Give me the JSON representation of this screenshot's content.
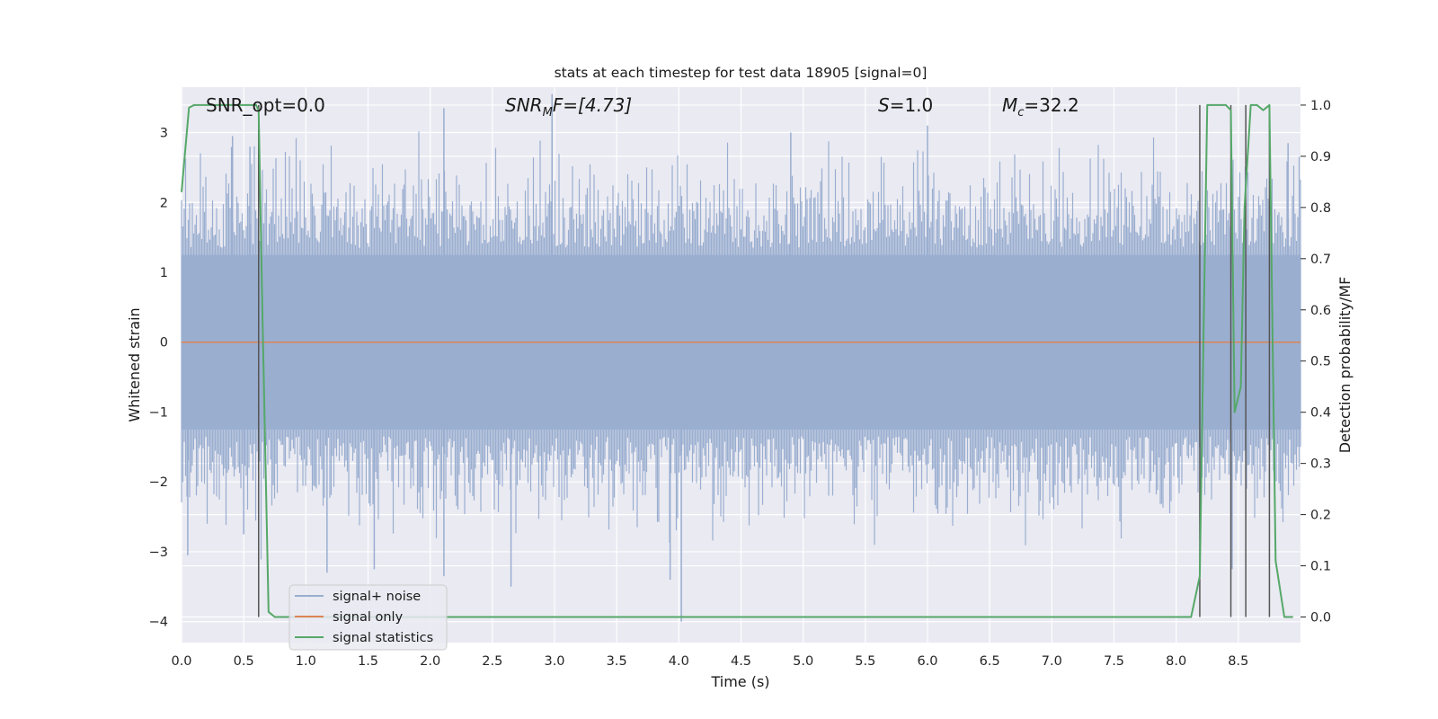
{
  "chart_data": {
    "type": "line",
    "title": "stats at each timestep for test data 18905 [signal=0]",
    "xlabel": "Time (s)",
    "ylabel": "Whitened strain",
    "ylabel_right": "Detection probability/MF",
    "xlim": [
      0.0,
      9.0
    ],
    "ylim": [
      -4.3,
      3.65
    ],
    "ylim_right": [
      -0.05,
      1.035
    ],
    "x_ticks": [
      "0.0",
      "0.5",
      "1.0",
      "1.5",
      "2.0",
      "2.5",
      "3.0",
      "3.5",
      "4.0",
      "4.5",
      "5.0",
      "5.5",
      "6.0",
      "6.5",
      "7.0",
      "7.5",
      "8.0",
      "8.5"
    ],
    "y_ticks": [
      "3",
      "2",
      "1",
      "0",
      "−1",
      "−2",
      "−3",
      "−4"
    ],
    "y_ticks_right": [
      "1.0",
      "0.9",
      "0.8",
      "0.7",
      "0.6",
      "0.5",
      "0.4",
      "0.3",
      "0.2",
      "0.1",
      "0.0"
    ],
    "grid": true,
    "legend_position": "lower-left",
    "annotations": {
      "snr_opt": "SNR_opt=0.0",
      "snr_mf_label": "SNR",
      "snr_mf_sub": "M",
      "snr_mf_rest": "F=[4.73]",
      "s_label": "S",
      "s_value": "=1.0",
      "mc_label": "M",
      "mc_sub": "c",
      "mc_value": "=32.2"
    },
    "series": [
      {
        "name": "signal+ noise",
        "color": "#9aaed0",
        "description_values": "dense whitened noise, mostly within [-1.7, 1.4], peaks to about 3.5 and -3.6",
        "envelope_upper_typical": 1.8,
        "envelope_lower_typical": -1.8,
        "spikes": [
          {
            "x": 0.05,
            "y": -3.05
          },
          {
            "x": 0.41,
            "y": 2.95
          },
          {
            "x": 0.55,
            "y": 2.8
          },
          {
            "x": 0.5,
            "y": -2.75
          },
          {
            "x": 1.17,
            "y": -3.3
          },
          {
            "x": 1.55,
            "y": -3.25
          },
          {
            "x": 2.11,
            "y": 3.35
          },
          {
            "x": 2.11,
            "y": -3.35
          },
          {
            "x": 2.65,
            "y": -3.5
          },
          {
            "x": 2.98,
            "y": 3.55
          },
          {
            "x": 3.93,
            "y": -3.4
          },
          {
            "x": 4.02,
            "y": -4.0
          },
          {
            "x": 4.9,
            "y": 3.0
          },
          {
            "x": 6.0,
            "y": 3.1
          },
          {
            "x": 8.45,
            "y": -3.25
          },
          {
            "x": 8.9,
            "y": 2.85
          }
        ]
      },
      {
        "name": "signal only",
        "color": "#dd8452",
        "x": [
          0.0,
          9.0
        ],
        "y": [
          0.0,
          0.0
        ]
      },
      {
        "name": "signal statistics",
        "color": "#55a868",
        "axis": "right",
        "x": [
          0.0,
          0.06,
          0.1,
          0.2,
          0.3,
          0.4,
          0.5,
          0.55,
          0.6,
          0.62,
          0.65,
          0.7,
          0.75,
          0.8,
          1.0,
          2.0,
          3.0,
          4.0,
          5.0,
          6.0,
          7.0,
          8.0,
          8.12,
          8.19,
          8.22,
          8.25,
          8.35,
          8.4,
          8.44,
          8.47,
          8.52,
          8.55,
          8.6,
          8.65,
          8.7,
          8.75,
          8.8,
          8.87,
          8.9,
          8.94
        ],
        "y": [
          0.83,
          0.995,
          1.0,
          1.0,
          1.0,
          1.0,
          1.0,
          1.0,
          1.0,
          0.99,
          0.6,
          0.01,
          0.0,
          0.0,
          0.0,
          0.0,
          0.0,
          0.0,
          0.0,
          0.0,
          0.0,
          0.0,
          0.0,
          0.08,
          0.55,
          1.0,
          1.0,
          1.0,
          0.99,
          0.4,
          0.45,
          0.8,
          1.0,
          1.0,
          0.99,
          1.0,
          0.11,
          0.0,
          0.0,
          0.0
        ]
      }
    ],
    "vertical_markers_x": [
      0.62,
      8.19,
      8.44,
      8.56,
      8.75
    ]
  }
}
